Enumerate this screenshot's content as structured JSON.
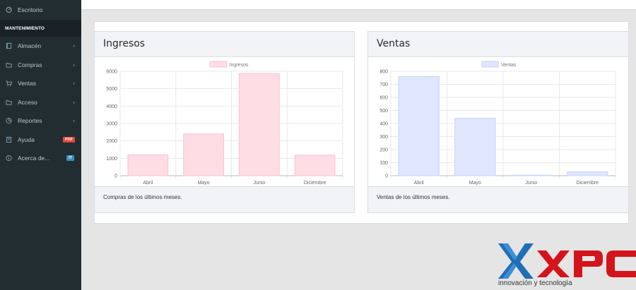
{
  "sidebar": {
    "items_top": [
      {
        "label": "Escritorio",
        "icon": "dashboard-icon"
      }
    ],
    "header": "MANTENIMIENTO",
    "items": [
      {
        "label": "Almacén",
        "icon": "folder-icon"
      },
      {
        "label": "Compras",
        "icon": "folder-icon"
      },
      {
        "label": "Ventas",
        "icon": "cart-icon"
      },
      {
        "label": "Acceso",
        "icon": "folder-icon"
      },
      {
        "label": "Reportes",
        "icon": "chart-icon"
      },
      {
        "label": "Ayuda",
        "icon": "book-icon",
        "badge": "PDF"
      },
      {
        "label": "Acerca de...",
        "icon": "info-icon",
        "badge": "IT"
      }
    ]
  },
  "panels": {
    "ingresos": {
      "title": "Ingresos",
      "footer": "Compras de los últimos meses."
    },
    "ventas": {
      "title": "Ventas",
      "footer": "Ventas de los últimos meses."
    }
  },
  "chart_data": [
    {
      "type": "bar",
      "categories": [
        "Abril",
        "Mayo",
        "Junio",
        "Diciembre"
      ],
      "series": [
        {
          "name": "Ingresos",
          "values": [
            1200,
            2400,
            5870,
            1180
          ]
        }
      ],
      "yticks": [
        0,
        1000,
        2000,
        3000,
        4000,
        5000,
        6000
      ],
      "ylim": [
        0,
        6000
      ],
      "grid": true,
      "legend": "top-center",
      "colors": {
        "fill": "#ffdde5",
        "stroke": "#ffc0cf"
      }
    },
    {
      "type": "bar",
      "categories": [
        "Abril",
        "Mayo",
        "Junio",
        "Diciembre"
      ],
      "series": [
        {
          "name": "Ventas",
          "values": [
            760,
            440,
            4,
            30
          ]
        }
      ],
      "yticks": [
        0,
        100,
        200,
        300,
        400,
        500,
        600,
        700,
        800
      ],
      "ylim": [
        0,
        800
      ],
      "grid": true,
      "legend": "top-center",
      "colors": {
        "fill": "#dfe6fd",
        "stroke": "#c8d4fb"
      }
    }
  ],
  "logo": {
    "brand": "XPC",
    "tagline": "innovación y tecnología",
    "colors": {
      "x_blue": "#1f6fb5",
      "x_light": "#3b8fd4",
      "red": "#d4141c"
    }
  }
}
